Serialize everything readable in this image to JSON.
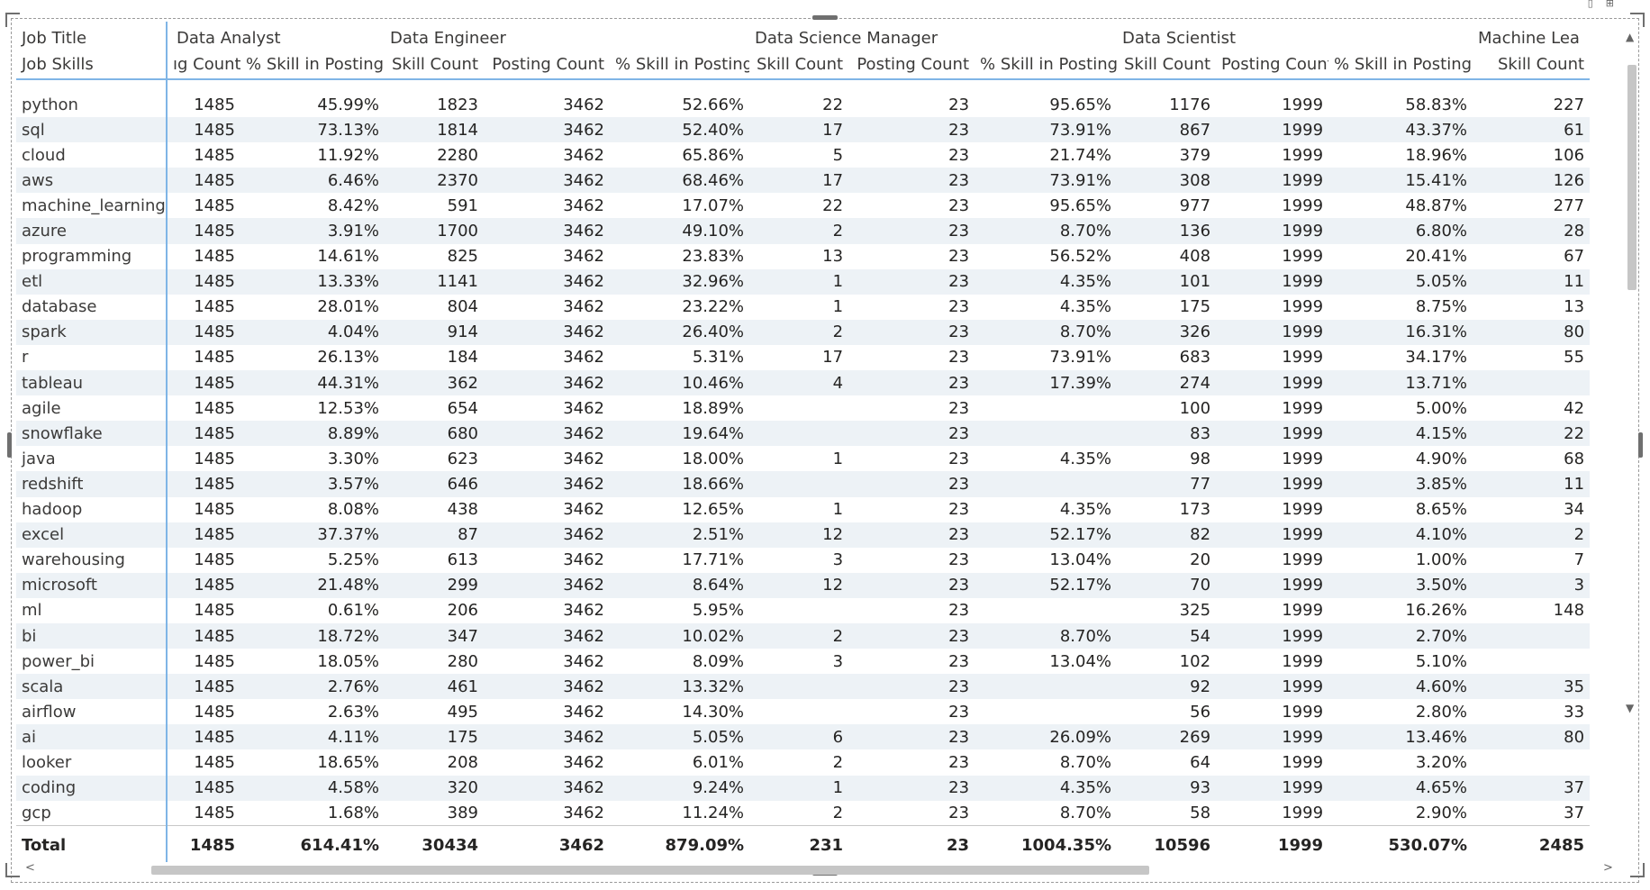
{
  "table": {
    "row_header_title": "Job Title",
    "row_header_sub": "Job Skills",
    "groups": [
      {
        "name": "Data Analyst",
        "span": 2
      },
      {
        "name": "Data Engineer",
        "span": 3
      },
      {
        "name": "Data Science Manager",
        "span": 3
      },
      {
        "name": "Data Scientist",
        "span": 3
      },
      {
        "name": "Machine Lea",
        "span": 1
      }
    ],
    "columns": [
      "ıg Count",
      "% Skill in Posting",
      "Skill Count",
      "Posting Count",
      "% Skill in Posting",
      "Skill Count",
      "Posting Count",
      "% Skill in Posting",
      "Skill Count",
      "Posting Count",
      "% Skill in Posting",
      "Skill Count"
    ],
    "rows": [
      [
        "python",
        "1485",
        "45.99%",
        "1823",
        "3462",
        "52.66%",
        "22",
        "23",
        "95.65%",
        "1176",
        "1999",
        "58.83%",
        "227"
      ],
      [
        "sql",
        "1485",
        "73.13%",
        "1814",
        "3462",
        "52.40%",
        "17",
        "23",
        "73.91%",
        "867",
        "1999",
        "43.37%",
        "61"
      ],
      [
        "cloud",
        "1485",
        "11.92%",
        "2280",
        "3462",
        "65.86%",
        "5",
        "23",
        "21.74%",
        "379",
        "1999",
        "18.96%",
        "106"
      ],
      [
        "aws",
        "1485",
        "6.46%",
        "2370",
        "3462",
        "68.46%",
        "17",
        "23",
        "73.91%",
        "308",
        "1999",
        "15.41%",
        "126"
      ],
      [
        "machine_learning",
        "1485",
        "8.42%",
        "591",
        "3462",
        "17.07%",
        "22",
        "23",
        "95.65%",
        "977",
        "1999",
        "48.87%",
        "277"
      ],
      [
        "azure",
        "1485",
        "3.91%",
        "1700",
        "3462",
        "49.10%",
        "2",
        "23",
        "8.70%",
        "136",
        "1999",
        "6.80%",
        "28"
      ],
      [
        "programming",
        "1485",
        "14.61%",
        "825",
        "3462",
        "23.83%",
        "13",
        "23",
        "56.52%",
        "408",
        "1999",
        "20.41%",
        "67"
      ],
      [
        "etl",
        "1485",
        "13.33%",
        "1141",
        "3462",
        "32.96%",
        "1",
        "23",
        "4.35%",
        "101",
        "1999",
        "5.05%",
        "11"
      ],
      [
        "database",
        "1485",
        "28.01%",
        "804",
        "3462",
        "23.22%",
        "1",
        "23",
        "4.35%",
        "175",
        "1999",
        "8.75%",
        "13"
      ],
      [
        "spark",
        "1485",
        "4.04%",
        "914",
        "3462",
        "26.40%",
        "2",
        "23",
        "8.70%",
        "326",
        "1999",
        "16.31%",
        "80"
      ],
      [
        "r",
        "1485",
        "26.13%",
        "184",
        "3462",
        "5.31%",
        "17",
        "23",
        "73.91%",
        "683",
        "1999",
        "34.17%",
        "55"
      ],
      [
        "tableau",
        "1485",
        "44.31%",
        "362",
        "3462",
        "10.46%",
        "4",
        "23",
        "17.39%",
        "274",
        "1999",
        "13.71%",
        ""
      ],
      [
        "agile",
        "1485",
        "12.53%",
        "654",
        "3462",
        "18.89%",
        "",
        "23",
        "",
        "100",
        "1999",
        "5.00%",
        "42"
      ],
      [
        "snowflake",
        "1485",
        "8.89%",
        "680",
        "3462",
        "19.64%",
        "",
        "23",
        "",
        "83",
        "1999",
        "4.15%",
        "22"
      ],
      [
        "java",
        "1485",
        "3.30%",
        "623",
        "3462",
        "18.00%",
        "1",
        "23",
        "4.35%",
        "98",
        "1999",
        "4.90%",
        "68"
      ],
      [
        "redshift",
        "1485",
        "3.57%",
        "646",
        "3462",
        "18.66%",
        "",
        "23",
        "",
        "77",
        "1999",
        "3.85%",
        "11"
      ],
      [
        "hadoop",
        "1485",
        "8.08%",
        "438",
        "3462",
        "12.65%",
        "1",
        "23",
        "4.35%",
        "173",
        "1999",
        "8.65%",
        "34"
      ],
      [
        "excel",
        "1485",
        "37.37%",
        "87",
        "3462",
        "2.51%",
        "12",
        "23",
        "52.17%",
        "82",
        "1999",
        "4.10%",
        "2"
      ],
      [
        "warehousing",
        "1485",
        "5.25%",
        "613",
        "3462",
        "17.71%",
        "3",
        "23",
        "13.04%",
        "20",
        "1999",
        "1.00%",
        "7"
      ],
      [
        "microsoft",
        "1485",
        "21.48%",
        "299",
        "3462",
        "8.64%",
        "12",
        "23",
        "52.17%",
        "70",
        "1999",
        "3.50%",
        "3"
      ],
      [
        "ml",
        "1485",
        "0.61%",
        "206",
        "3462",
        "5.95%",
        "",
        "23",
        "",
        "325",
        "1999",
        "16.26%",
        "148"
      ],
      [
        "bi",
        "1485",
        "18.72%",
        "347",
        "3462",
        "10.02%",
        "2",
        "23",
        "8.70%",
        "54",
        "1999",
        "2.70%",
        ""
      ],
      [
        "power_bi",
        "1485",
        "18.05%",
        "280",
        "3462",
        "8.09%",
        "3",
        "23",
        "13.04%",
        "102",
        "1999",
        "5.10%",
        ""
      ],
      [
        "scala",
        "1485",
        "2.76%",
        "461",
        "3462",
        "13.32%",
        "",
        "23",
        "",
        "92",
        "1999",
        "4.60%",
        "35"
      ],
      [
        "airflow",
        "1485",
        "2.63%",
        "495",
        "3462",
        "14.30%",
        "",
        "23",
        "",
        "56",
        "1999",
        "2.80%",
        "33"
      ],
      [
        "ai",
        "1485",
        "4.11%",
        "175",
        "3462",
        "5.05%",
        "6",
        "23",
        "26.09%",
        "269",
        "1999",
        "13.46%",
        "80"
      ],
      [
        "looker",
        "1485",
        "18.65%",
        "208",
        "3462",
        "6.01%",
        "2",
        "23",
        "8.70%",
        "64",
        "1999",
        "3.20%",
        ""
      ],
      [
        "coding",
        "1485",
        "4.58%",
        "320",
        "3462",
        "9.24%",
        "1",
        "23",
        "4.35%",
        "93",
        "1999",
        "4.65%",
        "37"
      ],
      [
        "gcp",
        "1485",
        "1.68%",
        "389",
        "3462",
        "11.24%",
        "2",
        "23",
        "8.70%",
        "58",
        "1999",
        "2.90%",
        "37"
      ]
    ],
    "total": [
      "Total",
      "1485",
      "614.41%",
      "30434",
      "3462",
      "879.09%",
      "231",
      "23",
      "1004.35%",
      "10596",
      "1999",
      "530.07%",
      "2485"
    ]
  },
  "icons": {
    "scroll_up": "▲",
    "scroll_down": "▼",
    "scroll_left": "<",
    "scroll_right": ">",
    "filter": "▯",
    "focus": "⊞"
  },
  "colors": {
    "accent": "#7fb5e6",
    "band": "#edf2f6",
    "text": "#252423"
  }
}
